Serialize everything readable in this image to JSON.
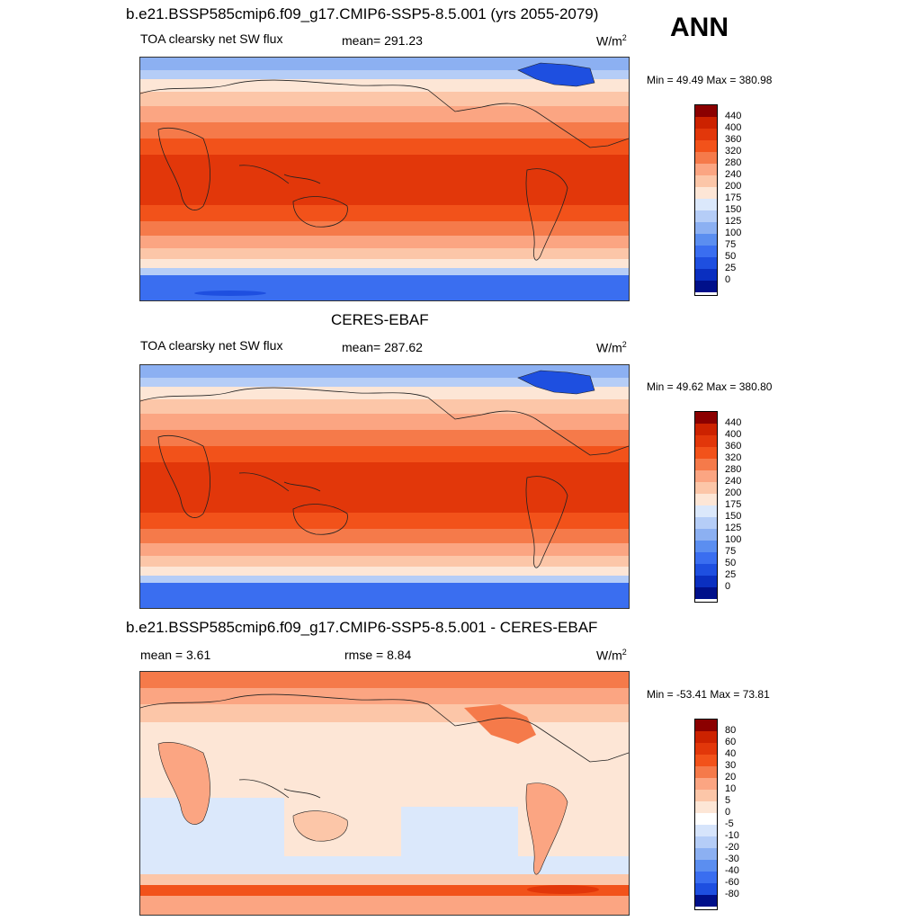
{
  "season": "ANN",
  "panel1": {
    "title": "b.e21.BSSP585cmip6.f09_g17.CMIP6-SSP5-8.5.001 (yrs 2055-2079)",
    "variable": "TOA clearsky net SW flux",
    "mean": "mean= 291.23",
    "units": "W/m",
    "units_sup": "2",
    "minmax": "Min =  49.49 Max = 380.98"
  },
  "panel2": {
    "title": "CERES-EBAF",
    "variable": "TOA clearsky net SW flux",
    "mean": "mean= 287.62",
    "units": "W/m",
    "units_sup": "2",
    "minmax": "Min =  49.62 Max = 380.80"
  },
  "panel3": {
    "title": "b.e21.BSSP585cmip6.f09_g17.CMIP6-SSP5-8.5.001 - CERES-EBAF",
    "mean": "mean =   3.61",
    "rmse": "rmse =   8.84",
    "units": "W/m",
    "units_sup": "2",
    "minmax": "Min = -53.41 Max =  73.81"
  },
  "colorbar_abs": {
    "labels": [
      "440",
      "400",
      "360",
      "320",
      "280",
      "240",
      "200",
      "175",
      "150",
      "125",
      "100",
      "75",
      "50",
      "25",
      "0"
    ],
    "colors": [
      "#8b0000",
      "#cc2200",
      "#e2370a",
      "#f2521a",
      "#f57a4a",
      "#fba582",
      "#fcc6a8",
      "#fde6d6",
      "#dbe8fb",
      "#b5cdf7",
      "#8cb0f2",
      "#5b8ef0",
      "#3a6ef0",
      "#1e4fe0",
      "#0a2fc0",
      "#00108a"
    ]
  },
  "colorbar_diff": {
    "labels": [
      "80",
      "60",
      "40",
      "30",
      "20",
      "10",
      "5",
      "0",
      "-5",
      "-10",
      "-20",
      "-30",
      "-40",
      "-60",
      "-80"
    ],
    "colors": [
      "#8b0000",
      "#cc2200",
      "#e2370a",
      "#f2521a",
      "#f57a4a",
      "#fba582",
      "#fcc6a8",
      "#fde6d6",
      "#ffffff",
      "#d6e4fb",
      "#b5cdf7",
      "#8cb0f2",
      "#5b8ef0",
      "#3a6ef0",
      "#1e4fe0",
      "#00108a"
    ]
  }
}
